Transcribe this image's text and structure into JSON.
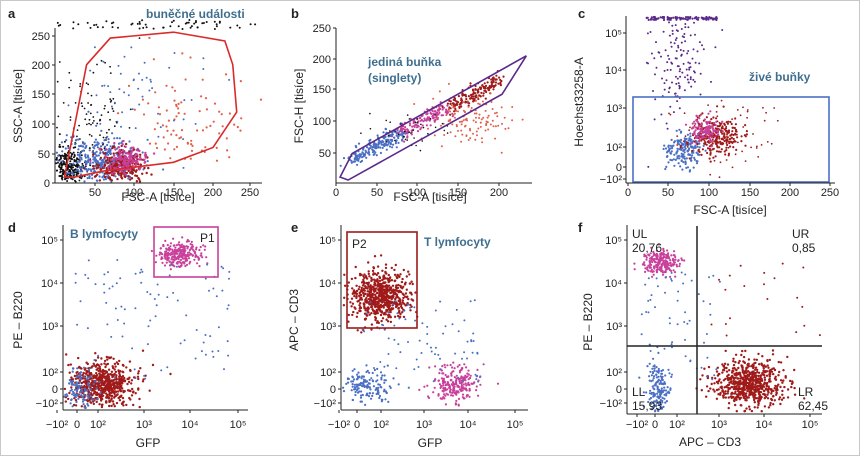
{
  "colors": {
    "cells": "#d92b2b",
    "singlets": "#5a2a8a",
    "live": "#4a6fc4",
    "b": "#c8409a",
    "t": "#9b1b1b",
    "quad": "#222222",
    "blue_pts": "#4a6fc4",
    "red_pts": "#a01a1a",
    "pink_pts": "#c8409a",
    "black_pts": "#111111",
    "lightred_pts": "#e0604a",
    "gate_text": "#3f6f8f"
  },
  "chart_data": [
    {
      "type": "scatter",
      "panel": "a",
      "xlabel": "FSC-A [tisíce]",
      "ylabel": "SSC-A [tisíce]",
      "xlim": [
        0,
        262
      ],
      "ylim": [
        0,
        262
      ],
      "xticks": [
        "50",
        "100",
        "150",
        "200",
        "250"
      ],
      "yticks": [
        "0",
        "50",
        "100",
        "150",
        "200",
        "250"
      ],
      "gate": {
        "name": "buněčné události",
        "shape": "polygon",
        "vertices": [
          [
            12,
            10
          ],
          [
            40,
            200
          ],
          [
            70,
            245
          ],
          [
            150,
            255
          ],
          [
            215,
            240
          ],
          [
            225,
            200
          ],
          [
            230,
            120
          ],
          [
            200,
            60
          ],
          [
            150,
            35
          ],
          [
            60,
            20
          ],
          [
            25,
            10
          ]
        ]
      }
    },
    {
      "type": "scatter",
      "panel": "b",
      "xlabel": "FSC-A [tisíce]",
      "ylabel": "FSC-H [tisíce]",
      "xlim": [
        0,
        242
      ],
      "ylim": [
        0,
        262
      ],
      "xticks": [
        "0",
        "50",
        "100",
        "150",
        "200"
      ],
      "yticks": [
        "50",
        "100",
        "150",
        "200",
        "250"
      ],
      "gate": {
        "name": "jediná buňka (singlety)",
        "shape": "polygon",
        "vertices": [
          [
            5,
            10
          ],
          [
            20,
            50
          ],
          [
            235,
            215
          ],
          [
            205,
            150
          ],
          [
            15,
            5
          ]
        ]
      }
    },
    {
      "type": "scatter",
      "panel": "c",
      "xlabel": "FSC-A [tisíce]",
      "ylabel": "Hoechst33258-A",
      "xlim": [
        0,
        262
      ],
      "xticks": [
        "0",
        "50",
        "100",
        "150",
        "200",
        "250"
      ],
      "yticks": [
        "−10²",
        "0",
        "10²",
        "10³",
        "10⁴",
        "10⁵"
      ],
      "gate": {
        "name": "živé buňky",
        "shape": "rectangle"
      }
    },
    {
      "type": "scatter",
      "panel": "d",
      "xlabel": "GFP",
      "ylabel": "PE – B220",
      "xticks": [
        "−10²",
        "0",
        "10²",
        "10³",
        "10⁴",
        "10⁵"
      ],
      "yticks": [
        "−10²",
        "0",
        "10²",
        "10³",
        "10⁴",
        "10⁵"
      ],
      "gate": {
        "name": "P1",
        "label": "B lymfocyty",
        "shape": "rectangle"
      }
    },
    {
      "type": "scatter",
      "panel": "e",
      "xlabel": "GFP",
      "ylabel": "APC – CD3",
      "xticks": [
        "−10²",
        "0",
        "10²",
        "10³",
        "10⁴",
        "10⁵"
      ],
      "yticks": [
        "−10²",
        "0",
        "10²",
        "10³",
        "10⁴",
        "10⁵"
      ],
      "gate": {
        "name": "P2",
        "label": "T lymfocyty",
        "shape": "rectangle"
      }
    },
    {
      "type": "scatter",
      "panel": "f",
      "xlabel": "APC – CD3",
      "ylabel": "PE – B220",
      "xticks": [
        "−10²",
        "0",
        "10²",
        "10³",
        "10⁴",
        "10⁵"
      ],
      "yticks": [
        "−10²",
        "0",
        "10²",
        "10³",
        "10⁴",
        "10⁵"
      ],
      "quadrants": [
        {
          "name": "UL",
          "value": "20,76"
        },
        {
          "name": "UR",
          "value": "0,85"
        },
        {
          "name": "LL",
          "value": "15,93"
        },
        {
          "name": "LR",
          "value": "62,45"
        }
      ]
    }
  ]
}
